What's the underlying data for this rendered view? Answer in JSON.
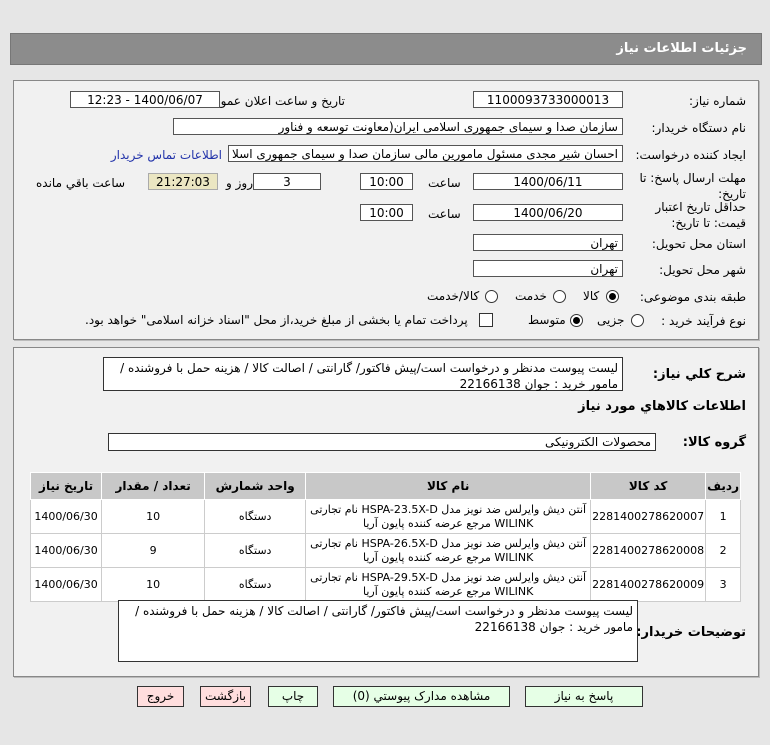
{
  "header": {
    "title": "جزئیات اطلاعات نیاز"
  },
  "form": {
    "need_number_label": "شماره نیاز:",
    "need_number": "1100093733000013",
    "announce_label": "تاریخ و ساعت اعلان عمومی:",
    "announce_value": "1400/06/07 - 12:23",
    "buyer_org_label": "نام دستگاه خریدار:",
    "buyer_org": "سازمان صدا و سیمای جمهوری اسلامی ایران(معاونت توسعه و فناور",
    "requester_label": "ایجاد کننده درخواست:",
    "requester": "احسان شیر مجدی مسئول مامورین مالی  سازمان صدا و سیمای جمهوری اسلا",
    "contact_link": "اطلاعات تماس خریدار",
    "deadline_label": "مهلت ارسال پاسخ: تا تاریخ:",
    "deadline_date": "1400/06/11",
    "time_label": "ساعت",
    "deadline_time": "10:00",
    "days": "3",
    "days_label": "روز و",
    "remaining": "21:27:03",
    "remaining_label": "ساعت باقي مانده",
    "validity_label": "حداقل تاریخ اعتبار قیمت: تا تاریخ:",
    "validity_date": "1400/06/20",
    "validity_time": "10:00",
    "province_label": "استان محل تحویل:",
    "province": "تهران",
    "city_label": "شهر محل تحویل:",
    "city": "تهران",
    "category_label": "طبقه بندی موضوعی:",
    "category_options": [
      "کالا",
      "خدمت",
      "کالا/خدمت"
    ],
    "category_selected": "کالا",
    "process_label": "نوع فرآیند خرید :",
    "process_options": [
      "جزیی",
      "متوسط"
    ],
    "process_selected": "متوسط",
    "treasury_text": "پرداخت تمام یا بخشی از مبلغ خرید،از محل \"اسناد خزانه اسلامی\" خواهد بود."
  },
  "details": {
    "summary_label": "شرح کلي نياز:",
    "summary": "لیست پیوست مدنظر و درخواست است/پیش فاکتور/ گارانتی / اصالت کالا / هزینه حمل با فروشنده / مامور خرید : جوان 22166138",
    "goods_heading": "اطلاعات کالاهاي مورد نياز",
    "group_label": "گروه کالا:",
    "group": "محصولات الکترونیکی",
    "table": {
      "headers": [
        "ردیف",
        "کد کالا",
        "نام کالا",
        "واحد شمارش",
        "تعداد / مقدار",
        "تاریخ نیاز"
      ],
      "rows": [
        {
          "n": "1",
          "code": "2281400278620007",
          "name": "آنتن دیش وایرلس ضد نویز مدل HSPA-23.5X-D نام تجارتی WILINK مرجع عرضه کننده پایون آریا",
          "unit": "دستگاه",
          "qty": "10",
          "date": "1400/06/30"
        },
        {
          "n": "2",
          "code": "2281400278620008",
          "name": "آنتن دیش وایرلس ضد نویز مدل HSPA-26.5X-D نام تجارتی WILINK مرجع عرضه کننده پایون آریا",
          "unit": "دستگاه",
          "qty": "9",
          "date": "1400/06/30"
        },
        {
          "n": "3",
          "code": "2281400278620009",
          "name": "آنتن دیش وایرلس ضد نویز مدل HSPA-29.5X-D نام تجارتی WILINK مرجع عرضه کننده پایون آریا",
          "unit": "دستگاه",
          "qty": "10",
          "date": "1400/06/30"
        }
      ]
    },
    "notes_label": "توضیحات خریدار:",
    "notes": "لیست پیوست مدنظر و درخواست است/پیش فاکتور/ گارانتی / اصالت کالا / هزینه حمل با فروشنده / مامور خرید : جوان 22166138"
  },
  "buttons": {
    "reply": "پاسخ به نیاز",
    "attachments": "مشاهده مدارک پیوستي (0)",
    "print": "چاپ",
    "back": "بازگشت",
    "exit": "خروج"
  }
}
